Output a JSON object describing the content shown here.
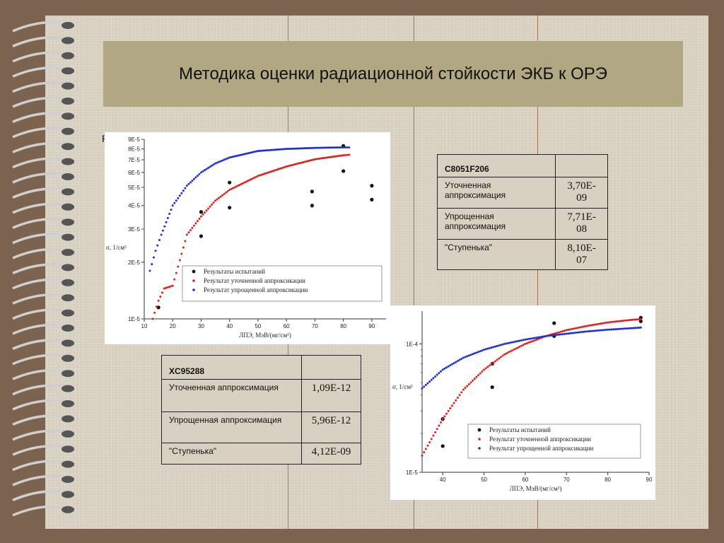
{
  "title": "Методика оценки радиационной стойкости ЭКБ к ОРЭ",
  "stray_char": "Р",
  "colors": {
    "tests": "#111111",
    "refined": "#e0201b",
    "simplified": "#1b2fd6",
    "title_bar": "#b2a783"
  },
  "legend_labels": {
    "tests": "Результаты испытаний",
    "refined": "Результат уточненной аппроксикации",
    "simplified": "Результат упрощенной аппроксикации"
  },
  "chart_data": [
    {
      "type": "scatter",
      "xlabel": "ЛПЭ, МэВ/(мг/см²)",
      "ylabel": "σ, 1/см²",
      "xlim": [
        10,
        95
      ],
      "ylim": [
        1e-05,
        9e-05
      ],
      "y_scale": "log",
      "x_ticks": [
        10,
        20,
        30,
        40,
        50,
        60,
        70,
        80,
        90
      ],
      "y_ticks": [
        "1E-5",
        "2E-5",
        "3E-5",
        "4E-5",
        "5E-5",
        "6E-5",
        "7E-5",
        "8E-5",
        "9E-5"
      ],
      "legend_position": "bottom-right",
      "series": [
        {
          "name": "Результаты испытаний",
          "kind": "points",
          "x": [
            15,
            30,
            30,
            40,
            40,
            69,
            69,
            80,
            80,
            90,
            90
          ],
          "y": [
            1.15e-05,
            3.7e-05,
            2.75e-05,
            5.3e-05,
            3.9e-05,
            4.75e-05,
            4e-05,
            8.3e-05,
            6.1e-05,
            5.1e-05,
            4.3e-05
          ]
        },
        {
          "name": "Результат уточненной аппроксикации",
          "kind": "dotted-curve",
          "x": [
            13,
            15,
            17,
            20,
            25,
            30,
            35,
            40,
            50,
            60,
            70,
            80,
            82
          ],
          "y": [
            1e-05,
            1.25e-05,
            1.45e-05,
            1.5e-05,
            2.8e-05,
            3.5e-05,
            4.25e-05,
            4.85e-05,
            5.75e-05,
            6.45e-05,
            7.05e-05,
            7.4e-05,
            7.45e-05
          ]
        },
        {
          "name": "Результат упрощенной аппроксикации",
          "kind": "dotted-curve",
          "x": [
            12,
            14,
            16,
            20,
            25,
            30,
            35,
            40,
            50,
            60,
            70,
            80,
            82
          ],
          "y": [
            1.8e-05,
            2.3e-05,
            2.8e-05,
            4e-05,
            5.1e-05,
            6e-05,
            6.7e-05,
            7.2e-05,
            7.8e-05,
            8e-05,
            8.1e-05,
            8.15e-05,
            8.15e-05
          ]
        }
      ]
    },
    {
      "type": "scatter",
      "xlabel": "ЛПЭ, МэВ/(мг/см²)",
      "ylabel": "σ, 1/см²",
      "xlim": [
        35,
        90
      ],
      "ylim": [
        1e-05,
        0.00018
      ],
      "y_scale": "log",
      "x_ticks": [
        40,
        50,
        60,
        70,
        80,
        90
      ],
      "y_ticks": [
        "1E-5",
        "1E-4"
      ],
      "legend_position": "bottom-right",
      "series": [
        {
          "name": "Результаты испытаний",
          "kind": "points",
          "x": [
            40,
            40,
            52,
            52,
            67,
            67,
            88,
            88
          ],
          "y": [
            2.6e-05,
            1.6e-05,
            7e-05,
            4.6e-05,
            0.000145,
            0.000115,
            0.00016,
            0.00015
          ]
        },
        {
          "name": "Результат уточненной аппроксикации",
          "kind": "dotted-curve",
          "x": [
            35,
            40,
            45,
            50,
            55,
            60,
            65,
            70,
            75,
            80,
            85,
            88
          ],
          "y": [
            1.35e-05,
            2.6e-05,
            4.4e-05,
            6.3e-05,
            8.3e-05,
            0.0001,
            0.000115,
            0.000128,
            0.000138,
            0.000147,
            0.000153,
            0.000156
          ]
        },
        {
          "name": "Результат упрощенной аппроксикации",
          "kind": "dotted-curve",
          "x": [
            35,
            40,
            45,
            50,
            55,
            60,
            65,
            70,
            75,
            80,
            85,
            88
          ],
          "y": [
            4.5e-05,
            6.3e-05,
            7.8e-05,
            9e-05,
            0.0001,
            0.000108,
            0.000115,
            0.00012,
            0.000125,
            0.000129,
            0.000132,
            0.000134
          ]
        }
      ]
    }
  ],
  "table1": {
    "header": "C8051F206",
    "rows": [
      {
        "label": "Уточненная аппроксимация",
        "value": "3,70E-09"
      },
      {
        "label": "Упрощенная аппроксимация",
        "value": "7,71E-08"
      },
      {
        "label": "\"Ступенька\"",
        "value": "8,10E-07"
      }
    ]
  },
  "table2": {
    "header": "XC95288",
    "rows": [
      {
        "label": "Уточненная аппроксимация",
        "value": "1,09E-12"
      },
      {
        "label": "Упрощенная аппроксимация",
        "value": "5,96E-12"
      },
      {
        "label": "\"Ступенька\"",
        "value": "4,12E-09"
      }
    ]
  }
}
